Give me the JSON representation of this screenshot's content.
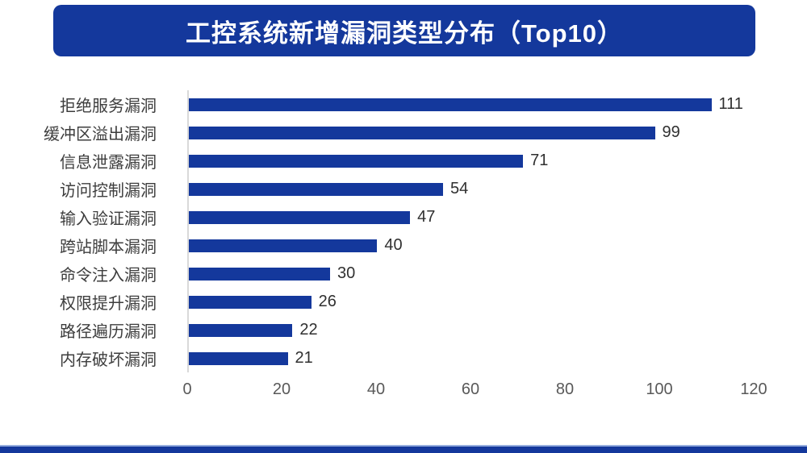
{
  "title_banner": {
    "text": "工控系统新增漏洞类型分布（Top10）",
    "bg_color": "#14389c",
    "text_color": "#ffffff"
  },
  "footer_bar": {
    "color": "#14389c",
    "border_color": "#96aede"
  },
  "chart_data": {
    "type": "bar",
    "orientation": "horizontal",
    "title": "工控系统新增漏洞类型分布（Top10）",
    "categories": [
      "拒绝服务漏洞",
      "缓冲区溢出漏洞",
      "信息泄露漏洞",
      "访问控制漏洞",
      "输入验证漏洞",
      "跨站脚本漏洞",
      "命令注入漏洞",
      "权限提升漏洞",
      "路径遍历漏洞",
      "内存破坏漏洞"
    ],
    "values": [
      111,
      99,
      71,
      54,
      47,
      40,
      30,
      26,
      22,
      21
    ],
    "value_labels_shown": true,
    "xticks": [
      0,
      20,
      40,
      60,
      80,
      100,
      120
    ],
    "xlim": [
      0,
      120
    ],
    "xlabel": "",
    "ylabel": "",
    "grid": false,
    "legend": false,
    "bar_color": "#14389c",
    "category_label_color": "#3d3d3d",
    "value_label_color": "#303030",
    "tick_label_color": "#595959",
    "axis_line_color": "#d9d9d9",
    "background_color": "#ffffff"
  }
}
